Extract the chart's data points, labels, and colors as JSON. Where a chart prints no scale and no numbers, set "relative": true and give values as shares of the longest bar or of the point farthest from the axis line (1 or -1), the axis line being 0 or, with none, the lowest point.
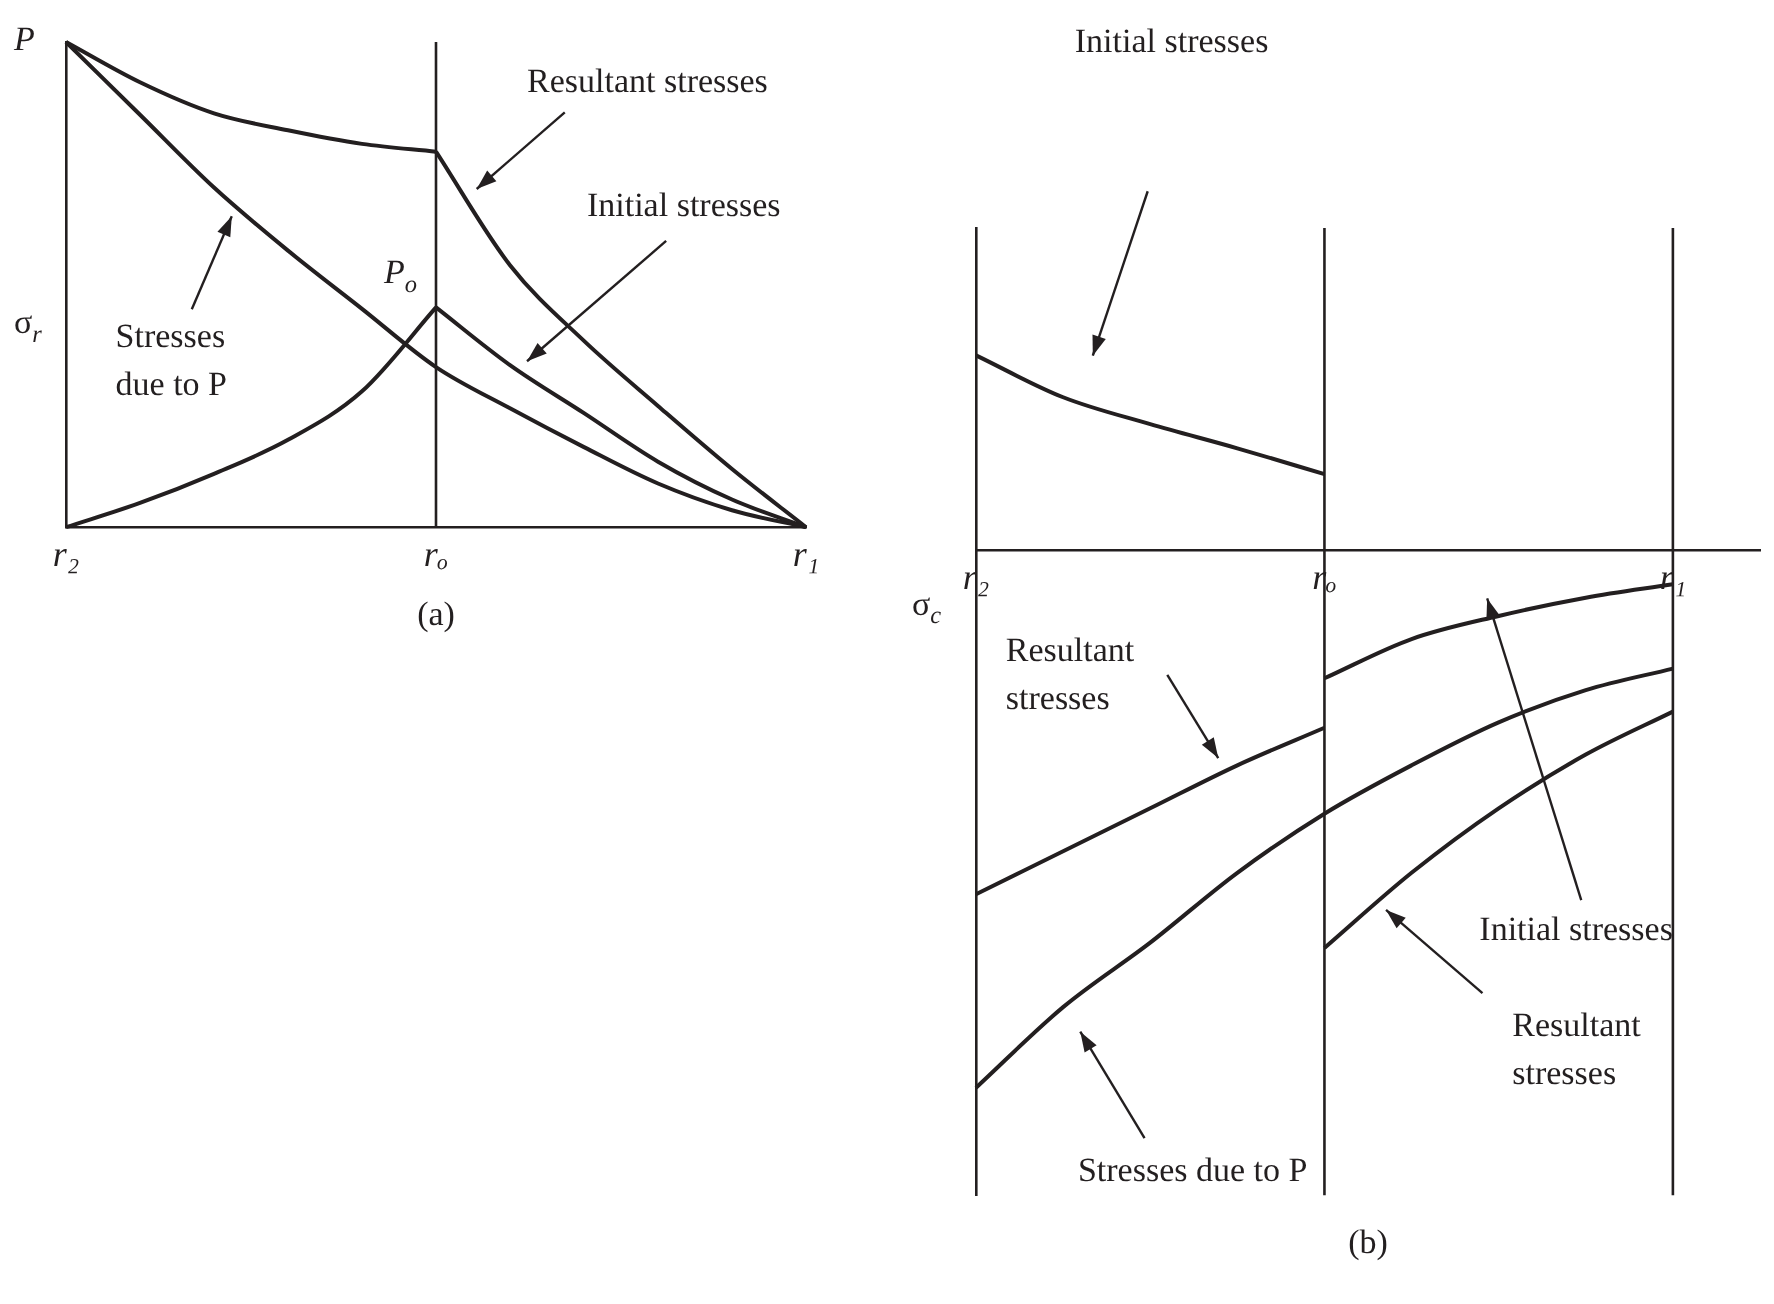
{
  "chart_data": [
    {
      "type": "line",
      "title": "(a)",
      "ylabel": "σ$_{r}$",
      "relative": true,
      "grid": false,
      "legend": false,
      "line_style": "solid",
      "categories": [
        "r₂",
        null,
        null,
        null,
        null,
        "rₒ",
        null,
        null,
        null,
        null,
        "r₁"
      ],
      "ref_lines": [
        {
          "axis": "x",
          "value": "rₒ",
          "color": "#231f20"
        }
      ],
      "series": [
        {
          "color": "#231f20",
          "values": [
            1,
            0.917,
            0.853,
            0.818,
            0.79,
            0.774,
            null,
            null,
            null,
            null,
            null
          ]
        },
        {
          "color": "#231f20",
          "values": [
            null,
            null,
            null,
            null,
            null,
            0.774,
            0.54,
            0.384,
            0.25,
            0.12,
            0
          ]
        },
        {
          "color": "#231f20",
          "values": [
            0,
            0.05,
            0.11,
            0.18,
            0.28,
            0.453,
            null,
            null,
            null,
            null,
            null
          ]
        },
        {
          "color": "#231f20",
          "values": [
            null,
            null,
            null,
            null,
            null,
            0.453,
            0.334,
            0.235,
            0.135,
            0.057,
            0
          ]
        },
        {
          "color": "#231f20",
          "values": [
            1,
            0.85,
            0.7,
            0.57,
            0.45,
            0.33,
            0.245,
            0.165,
            0.09,
            0.035,
            0
          ]
        }
      ],
      "annotations": [
        "Resultant stresses",
        "Initial stresses",
        "Stresses due to P",
        {
          "text": "P",
          "x": "r₂",
          "y": 1
        },
        {
          "text": "P$_{o}$",
          "x": "rₒ",
          "y": 0.453
        }
      ]
    },
    {
      "type": "line",
      "title": "(b)",
      "ylabel": "σ$_{c}$",
      "relative": true,
      "grid": false,
      "legend": false,
      "line_style": "solid",
      "categories": [
        "r₂",
        null,
        null,
        null,
        "rₒ",
        null,
        null,
        null,
        "r₁",
        null
      ],
      "ref_lines": [
        {
          "axis": "x",
          "value": "rₒ",
          "color": "#231f20"
        },
        {
          "axis": "x",
          "value": "r₁",
          "color": "#231f20"
        }
      ],
      "series": [
        {
          "color": "#231f20",
          "values": [
            0.363,
            0.285,
            0.235,
            0.19,
            0.142,
            null,
            null,
            null,
            null,
            null
          ]
        },
        {
          "color": "#231f20",
          "values": [
            null,
            null,
            null,
            null,
            -0.238,
            -0.165,
            -0.122,
            -0.088,
            -0.063,
            null
          ]
        },
        {
          "color": "#231f20",
          "values": [
            -0.64,
            -0.56,
            -0.48,
            -0.4,
            -0.33,
            null,
            null,
            null,
            null,
            null
          ]
        },
        {
          "color": "#231f20",
          "values": [
            null,
            null,
            null,
            null,
            -0.74,
            -0.6,
            -0.48,
            -0.38,
            -0.3,
            null
          ]
        },
        {
          "color": "#231f20",
          "values": [
            -1,
            -0.85,
            -0.73,
            -0.6,
            -0.49,
            -0.4,
            -0.32,
            -0.26,
            -0.22,
            null
          ]
        }
      ],
      "annotations": [
        "Initial stresses",
        "Resultant stresses",
        "Stresses due to P",
        "Initial stresses",
        "Resultant stresses"
      ]
    }
  ]
}
